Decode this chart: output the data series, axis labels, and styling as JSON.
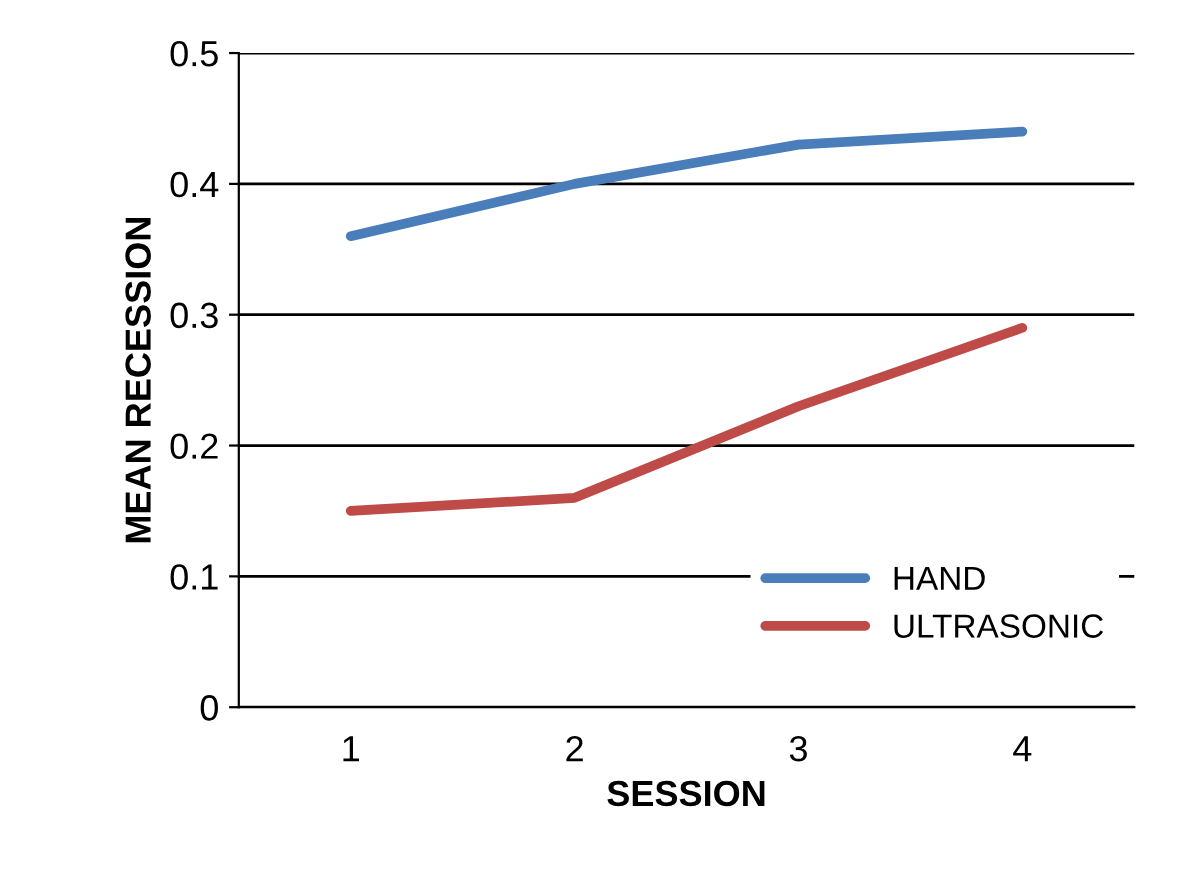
{
  "chart_data": {
    "type": "line",
    "xlabel": "SESSION",
    "ylabel": "MEAN RECESSION",
    "categories": [
      "1",
      "2",
      "3",
      "4"
    ],
    "series": [
      {
        "name": "HAND",
        "color": "#4a7ebb",
        "values": [
          0.36,
          0.4,
          0.43,
          0.44
        ]
      },
      {
        "name": "ULTRASONIC",
        "color": "#be4b48",
        "values": [
          0.15,
          0.16,
          0.23,
          0.29
        ]
      }
    ],
    "ylim": [
      0,
      0.5
    ],
    "yticks": [
      {
        "value": 0,
        "label": "0"
      },
      0.1,
      0.2,
      0.3,
      0.4,
      0.5
    ],
    "grid": "y",
    "legend": "bottom right",
    "marker": "none",
    "line_style": "solid"
  }
}
